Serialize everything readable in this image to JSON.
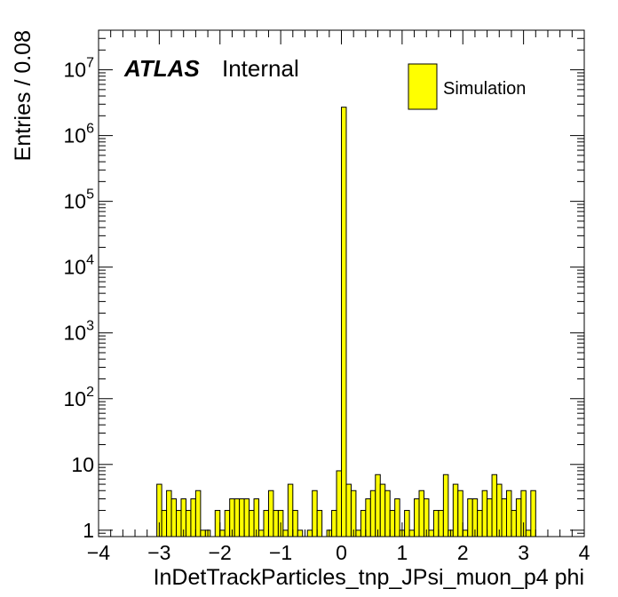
{
  "chart_data": {
    "type": "bar",
    "title": "",
    "xlabel": "InDetTrackParticles_tnp_JPsi_muon_p4 phi",
    "ylabel": "Entries / 0.08",
    "xlim": [
      -4,
      4
    ],
    "ylim": [
      0.8,
      40000000
    ],
    "log_y": true,
    "bin_width": 0.08,
    "x_tick_labels": [
      "−4",
      "−3",
      "−2",
      "−1",
      "0",
      "1",
      "2",
      "3",
      "4"
    ],
    "y_tick_labels": [
      {
        "value": 1,
        "base": "1",
        "exp": ""
      },
      {
        "value": 10,
        "base": "10",
        "exp": ""
      },
      {
        "value": 100,
        "base": "10",
        "exp": "2"
      },
      {
        "value": 1000,
        "base": "10",
        "exp": "3"
      },
      {
        "value": 10000,
        "base": "10",
        "exp": "4"
      },
      {
        "value": 100000,
        "base": "10",
        "exp": "5"
      },
      {
        "value": 1000000,
        "base": "10",
        "exp": "6"
      },
      {
        "value": 10000000,
        "base": "10",
        "exp": "7"
      }
    ],
    "atlas_label": "ATLAS",
    "atlas_sublabel": "Internal",
    "legend": {
      "position": "top-right"
    },
    "fill_color": "#ffff00",
    "series": [
      {
        "name": "Simulation",
        "bins": [
          [
            -3.04,
            5
          ],
          [
            -2.96,
            2
          ],
          [
            -2.88,
            4
          ],
          [
            -2.8,
            3
          ],
          [
            -2.72,
            2
          ],
          [
            -2.64,
            3
          ],
          [
            -2.56,
            2
          ],
          [
            -2.48,
            3
          ],
          [
            -2.4,
            4
          ],
          [
            -2.32,
            1
          ],
          [
            -2.24,
            1
          ],
          [
            -2.08,
            2
          ],
          [
            -2.0,
            1
          ],
          [
            -1.92,
            2
          ],
          [
            -1.84,
            3
          ],
          [
            -1.76,
            3
          ],
          [
            -1.68,
            3
          ],
          [
            -1.6,
            3
          ],
          [
            -1.52,
            2
          ],
          [
            -1.44,
            3
          ],
          [
            -1.36,
            1
          ],
          [
            -1.28,
            2
          ],
          [
            -1.2,
            4
          ],
          [
            -1.12,
            2
          ],
          [
            -1.04,
            2
          ],
          [
            -0.96,
            1
          ],
          [
            -0.88,
            5
          ],
          [
            -0.8,
            2
          ],
          [
            -0.72,
            1
          ],
          [
            -0.56,
            1
          ],
          [
            -0.48,
            4
          ],
          [
            -0.4,
            2
          ],
          [
            -0.24,
            1
          ],
          [
            -0.16,
            2
          ],
          [
            -0.08,
            8
          ],
          [
            0.0,
            2700000
          ],
          [
            0.08,
            5
          ],
          [
            0.16,
            4
          ],
          [
            0.24,
            1
          ],
          [
            0.32,
            2
          ],
          [
            0.4,
            3
          ],
          [
            0.48,
            4
          ],
          [
            0.56,
            7
          ],
          [
            0.64,
            5
          ],
          [
            0.72,
            4
          ],
          [
            0.8,
            2
          ],
          [
            0.88,
            3
          ],
          [
            0.96,
            1
          ],
          [
            1.04,
            2
          ],
          [
            1.12,
            1
          ],
          [
            1.2,
            3
          ],
          [
            1.28,
            4
          ],
          [
            1.36,
            3
          ],
          [
            1.44,
            1
          ],
          [
            1.52,
            2
          ],
          [
            1.6,
            2
          ],
          [
            1.68,
            7
          ],
          [
            1.76,
            1
          ],
          [
            1.84,
            5
          ],
          [
            1.92,
            4
          ],
          [
            2.0,
            1
          ],
          [
            2.08,
            3
          ],
          [
            2.16,
            3
          ],
          [
            2.24,
            2
          ],
          [
            2.32,
            4
          ],
          [
            2.4,
            3
          ],
          [
            2.48,
            7
          ],
          [
            2.56,
            5
          ],
          [
            2.64,
            3
          ],
          [
            2.72,
            4
          ],
          [
            2.8,
            2
          ],
          [
            2.88,
            3
          ],
          [
            2.96,
            4
          ],
          [
            3.04,
            1
          ],
          [
            3.12,
            4
          ]
        ]
      }
    ]
  }
}
